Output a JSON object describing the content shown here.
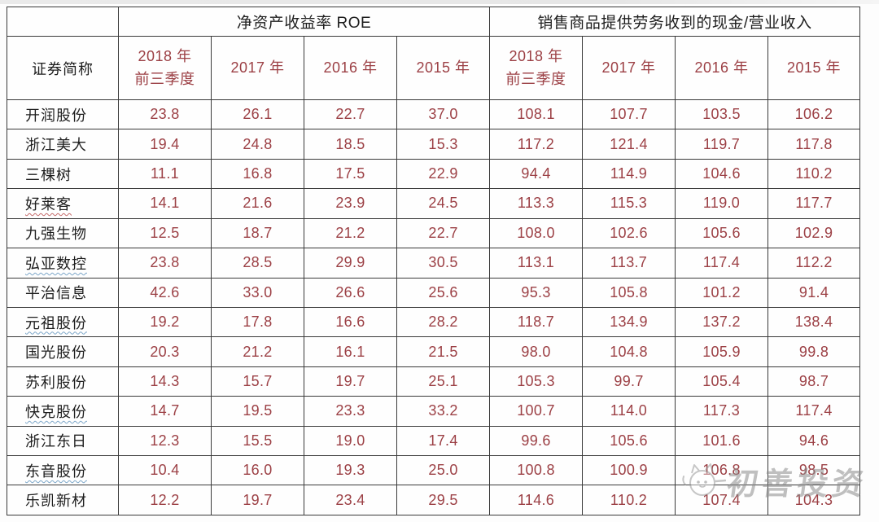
{
  "table": {
    "name_header": "证券简称",
    "sections": [
      {
        "title": "净资产收益率 ROE"
      },
      {
        "title": "销售商品提供劳务收到的现金/营业收入"
      }
    ],
    "year_headers": [
      "2018 年\n前三季度",
      "2017 年",
      "2016 年",
      "2015 年"
    ],
    "rows": [
      {
        "name": "开润股份",
        "underline": "none",
        "roe": [
          "23.8",
          "26.1",
          "22.7",
          "37.0"
        ],
        "cash": [
          "108.1",
          "107.7",
          "103.5",
          "106.2"
        ]
      },
      {
        "name": "浙江美大",
        "underline": "none",
        "roe": [
          "19.4",
          "24.8",
          "18.5",
          "15.3"
        ],
        "cash": [
          "117.2",
          "121.4",
          "119.7",
          "117.8"
        ]
      },
      {
        "name": "三棵树",
        "underline": "none",
        "roe": [
          "11.1",
          "16.8",
          "17.5",
          "22.9"
        ],
        "cash": [
          "94.4",
          "114.9",
          "104.6",
          "110.2"
        ]
      },
      {
        "name": "好莱客",
        "underline": "red",
        "roe": [
          "14.1",
          "21.6",
          "23.9",
          "24.5"
        ],
        "cash": [
          "113.3",
          "115.3",
          "119.0",
          "117.7"
        ]
      },
      {
        "name": "九强生物",
        "underline": "none",
        "roe": [
          "12.5",
          "18.7",
          "21.2",
          "22.7"
        ],
        "cash": [
          "108.0",
          "102.6",
          "105.6",
          "102.9"
        ]
      },
      {
        "name": "弘亚数控",
        "underline": "blue",
        "roe": [
          "23.8",
          "28.5",
          "29.9",
          "30.5"
        ],
        "cash": [
          "113.1",
          "113.7",
          "117.4",
          "112.2"
        ]
      },
      {
        "name": "平治信息",
        "underline": "none",
        "roe": [
          "42.6",
          "33.0",
          "26.6",
          "25.6"
        ],
        "cash": [
          "95.3",
          "105.8",
          "101.2",
          "91.4"
        ]
      },
      {
        "name": "元祖股份",
        "underline": "blue",
        "roe": [
          "19.2",
          "17.8",
          "16.6",
          "28.2"
        ],
        "cash": [
          "118.7",
          "134.9",
          "137.2",
          "138.4"
        ]
      },
      {
        "name": "国光股份",
        "underline": "none",
        "roe": [
          "20.3",
          "21.2",
          "16.1",
          "21.5"
        ],
        "cash": [
          "98.0",
          "104.8",
          "105.9",
          "99.8"
        ]
      },
      {
        "name": "苏利股份",
        "underline": "none",
        "roe": [
          "14.3",
          "15.7",
          "19.7",
          "25.1"
        ],
        "cash": [
          "105.3",
          "99.7",
          "105.4",
          "98.7"
        ]
      },
      {
        "name": "快克股份",
        "underline": "blue",
        "roe": [
          "14.7",
          "19.5",
          "23.3",
          "33.2"
        ],
        "cash": [
          "100.7",
          "114.0",
          "117.3",
          "117.4"
        ]
      },
      {
        "name": "浙江东日",
        "underline": "none",
        "roe": [
          "12.3",
          "15.5",
          "19.0",
          "17.4"
        ],
        "cash": [
          "99.6",
          "105.6",
          "101.6",
          "94.6"
        ]
      },
      {
        "name": "东音股份",
        "underline": "blue",
        "roe": [
          "10.4",
          "16.0",
          "19.3",
          "25.0"
        ],
        "cash": [
          "100.8",
          "100.9",
          "106.8",
          "98.5"
        ]
      },
      {
        "name": "乐凯新材",
        "underline": "none",
        "roe": [
          "12.2",
          "19.7",
          "23.4",
          "29.5"
        ],
        "cash": [
          "114.6",
          "110.2",
          "107.4",
          "104.3"
        ]
      }
    ]
  },
  "watermark": {
    "text": "初善投资"
  },
  "colors": {
    "accent_red": "#9c4045",
    "border": "#3a3a3a",
    "underline_blue": "#7da7c9",
    "underline_red": "#c56a6a",
    "watermark_grey": "#8d8d8d"
  }
}
